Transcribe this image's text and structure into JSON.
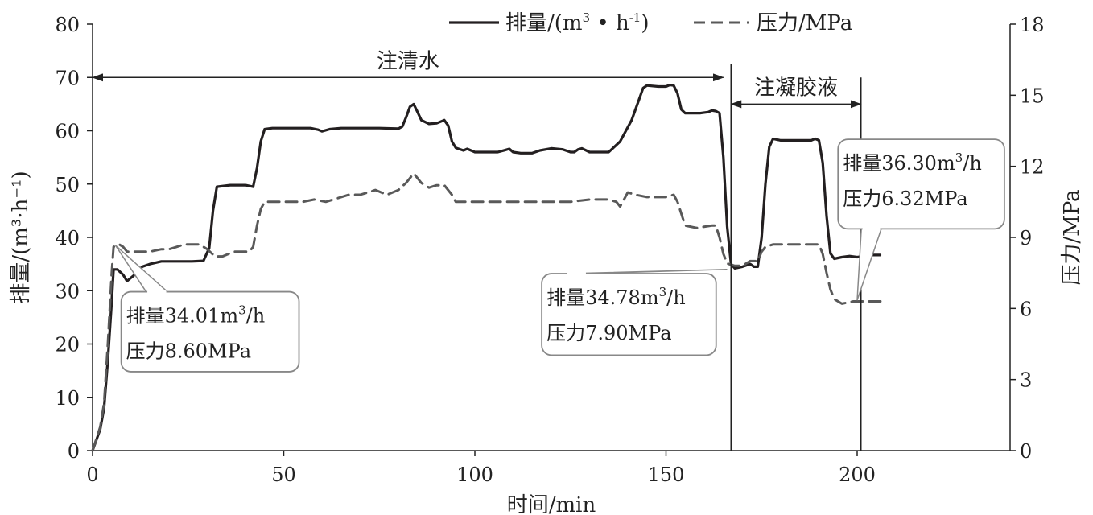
{
  "chart_data": {
    "type": "line",
    "title": "",
    "xlabel": "时间/min",
    "ylabel_left": "排量/(m³·h⁻¹)",
    "ylabel_right": "压力/MPa",
    "xlim": [
      0,
      240
    ],
    "ylim_left": [
      0,
      80
    ],
    "ylim_right": [
      0,
      18
    ],
    "x_ticks": [
      0,
      50,
      100,
      150,
      200
    ],
    "y_left_ticks": [
      0,
      10,
      20,
      30,
      40,
      50,
      60,
      70,
      80
    ],
    "y_right_ticks": [
      0,
      3,
      6,
      9,
      12,
      15,
      18
    ],
    "legend": {
      "position": "top",
      "items": [
        {
          "label_main": "排量/(m",
          "sup1": "3",
          "label_mid": " • h",
          "sup2": "-1",
          "label_end": ")",
          "style": "solid"
        },
        {
          "label": "压力/MPa",
          "style": "dashed"
        }
      ]
    },
    "series": [
      {
        "name": "排量/(m³·h⁻¹)",
        "axis": "left",
        "style": "solid",
        "color": "#231f20",
        "points": [
          [
            0,
            0
          ],
          [
            2,
            4
          ],
          [
            3,
            8
          ],
          [
            4,
            17
          ],
          [
            5,
            28
          ],
          [
            5.5,
            34
          ],
          [
            6.5,
            34
          ],
          [
            8,
            33
          ],
          [
            9,
            31.8
          ],
          [
            11,
            33
          ],
          [
            13,
            34.5
          ],
          [
            15,
            35
          ],
          [
            18,
            35.5
          ],
          [
            22,
            35.5
          ],
          [
            26,
            35.5
          ],
          [
            29,
            35.6
          ],
          [
            30.5,
            38
          ],
          [
            31.5,
            45
          ],
          [
            32.5,
            49.5
          ],
          [
            36,
            49.8
          ],
          [
            40,
            49.8
          ],
          [
            42,
            49.5
          ],
          [
            43,
            53
          ],
          [
            44,
            58
          ],
          [
            45,
            60.3
          ],
          [
            47,
            60.5
          ],
          [
            52,
            60.5
          ],
          [
            57,
            60.5
          ],
          [
            59,
            60.2
          ],
          [
            60,
            59.9
          ],
          [
            62,
            60.3
          ],
          [
            65,
            60.5
          ],
          [
            70,
            60.5
          ],
          [
            75,
            60.5
          ],
          [
            80,
            60.4
          ],
          [
            81,
            60.8
          ],
          [
            82,
            62.5
          ],
          [
            83,
            64.5
          ],
          [
            84,
            65
          ],
          [
            85,
            63.5
          ],
          [
            86,
            62
          ],
          [
            88,
            61.3
          ],
          [
            90,
            61.4
          ],
          [
            92,
            62
          ],
          [
            93,
            61
          ],
          [
            94,
            58
          ],
          [
            95,
            56.8
          ],
          [
            97,
            56.3
          ],
          [
            98,
            56.6
          ],
          [
            100,
            56
          ],
          [
            103,
            56
          ],
          [
            106,
            56
          ],
          [
            108,
            56.4
          ],
          [
            109,
            56.6
          ],
          [
            110,
            56
          ],
          [
            112,
            55.8
          ],
          [
            115,
            55.8
          ],
          [
            117,
            56.3
          ],
          [
            120,
            56.7
          ],
          [
            123,
            56.5
          ],
          [
            125,
            56
          ],
          [
            126,
            56
          ],
          [
            127,
            56.5
          ],
          [
            128,
            56.7
          ],
          [
            130,
            56
          ],
          [
            132,
            56
          ],
          [
            135,
            56
          ],
          [
            138,
            58
          ],
          [
            141,
            62
          ],
          [
            143,
            66
          ],
          [
            144,
            68
          ],
          [
            145,
            68.5
          ],
          [
            148,
            68.3
          ],
          [
            150,
            68.3
          ],
          [
            151,
            68.6
          ],
          [
            152,
            68.5
          ],
          [
            153,
            67
          ],
          [
            154,
            64
          ],
          [
            155,
            63.3
          ],
          [
            157,
            63.3
          ],
          [
            159,
            63.3
          ],
          [
            161,
            63.5
          ],
          [
            162,
            63.8
          ],
          [
            163,
            63.7
          ],
          [
            164,
            63.3
          ],
          [
            165,
            55
          ],
          [
            166,
            42
          ],
          [
            167,
            35
          ],
          [
            168,
            34.2
          ],
          [
            170,
            34.5
          ],
          [
            172,
            35
          ],
          [
            173,
            34.5
          ],
          [
            174,
            34.5
          ],
          [
            175,
            40
          ],
          [
            176,
            50
          ],
          [
            177,
            57
          ],
          [
            178,
            58.5
          ],
          [
            180,
            58.2
          ],
          [
            185,
            58.2
          ],
          [
            188,
            58.2
          ],
          [
            189,
            58.5
          ],
          [
            190,
            58.2
          ],
          [
            191,
            54
          ],
          [
            192,
            44
          ],
          [
            193,
            37
          ],
          [
            194,
            36
          ],
          [
            196,
            36.3
          ],
          [
            198,
            36.5
          ],
          [
            200,
            36.3
          ],
          [
            202,
            36.5
          ],
          [
            204,
            36.7
          ],
          [
            206,
            36.7
          ]
        ]
      },
      {
        "name": "压力/MPa",
        "axis": "right",
        "style": "dashed",
        "color": "#595959",
        "points": [
          [
            0,
            0
          ],
          [
            2,
            1
          ],
          [
            3,
            2
          ],
          [
            4,
            4.5
          ],
          [
            5,
            7.5
          ],
          [
            5.5,
            8.6
          ],
          [
            7,
            8.7
          ],
          [
            8,
            8.6
          ],
          [
            9,
            8.4
          ],
          [
            12,
            8.4
          ],
          [
            15,
            8.4
          ],
          [
            18,
            8.5
          ],
          [
            20,
            8.5
          ],
          [
            22,
            8.6
          ],
          [
            24,
            8.7
          ],
          [
            28,
            8.7
          ],
          [
            30,
            8.5
          ],
          [
            32,
            8.2
          ],
          [
            34,
            8.2
          ],
          [
            37,
            8.4
          ],
          [
            41,
            8.4
          ],
          [
            42,
            8.6
          ],
          [
            43,
            9.5
          ],
          [
            44,
            10.2
          ],
          [
            45,
            10.5
          ],
          [
            50,
            10.5
          ],
          [
            55,
            10.5
          ],
          [
            58,
            10.6
          ],
          [
            61,
            10.5
          ],
          [
            63,
            10.6
          ],
          [
            67,
            10.8
          ],
          [
            70,
            10.8
          ],
          [
            72,
            10.9
          ],
          [
            74,
            11
          ],
          [
            77,
            10.8
          ],
          [
            80,
            11
          ],
          [
            82,
            11.3
          ],
          [
            84,
            11.7
          ],
          [
            85,
            11.5
          ],
          [
            86,
            11.3
          ],
          [
            88,
            11.1
          ],
          [
            90,
            11.2
          ],
          [
            92,
            11.2
          ],
          [
            94,
            10.8
          ],
          [
            95,
            10.5
          ],
          [
            97,
            10.5
          ],
          [
            100,
            10.5
          ],
          [
            105,
            10.5
          ],
          [
            110,
            10.5
          ],
          [
            115,
            10.5
          ],
          [
            120,
            10.5
          ],
          [
            125,
            10.5
          ],
          [
            130,
            10.6
          ],
          [
            135,
            10.6
          ],
          [
            137,
            10.5
          ],
          [
            138,
            10.3
          ],
          [
            139,
            10.6
          ],
          [
            140,
            10.9
          ],
          [
            142,
            10.8
          ],
          [
            145,
            10.7
          ],
          [
            148,
            10.7
          ],
          [
            150,
            10.7
          ],
          [
            152,
            10.8
          ],
          [
            153,
            10.5
          ],
          [
            154,
            10
          ],
          [
            155,
            9.5
          ],
          [
            158,
            9.4
          ],
          [
            162,
            9.5
          ],
          [
            163,
            9.5
          ],
          [
            164,
            9
          ],
          [
            165,
            8.3
          ],
          [
            166,
            7.9
          ],
          [
            168,
            7.8
          ],
          [
            170,
            7.8
          ],
          [
            172,
            8
          ],
          [
            174,
            8
          ],
          [
            175,
            8.4
          ],
          [
            176,
            8.6
          ],
          [
            178,
            8.7
          ],
          [
            182,
            8.7
          ],
          [
            186,
            8.7
          ],
          [
            190,
            8.7
          ],
          [
            191,
            8.3
          ],
          [
            192,
            7.5
          ],
          [
            193,
            6.8
          ],
          [
            194,
            6.4
          ],
          [
            196,
            6.2
          ],
          [
            199,
            6.3
          ],
          [
            202,
            6.3
          ],
          [
            205,
            6.3
          ],
          [
            207,
            6.3
          ]
        ]
      }
    ],
    "stage_annotations": [
      {
        "label": "注清水",
        "x_start": 0,
        "x_end": 165,
        "y_left": 70
      },
      {
        "label": "注凝胶液",
        "x_start": 167,
        "x_end": 201,
        "y_left": 65
      }
    ],
    "vertical_lines": [
      {
        "x": 167,
        "y_top": 72.5
      },
      {
        "x": 201,
        "y_top": 70
      }
    ],
    "callouts": [
      {
        "line1_label": "排量",
        "line1_value": "34.01m",
        "line1_sup": "3",
        "line1_unit": "/h",
        "line2_label": "压力",
        "line2_value": "8.60MPa",
        "point_x": 6,
        "point_y_left": 38.5,
        "box_x": 7.5,
        "box_y_top": 29.8,
        "box_y_bottom": 14.8,
        "box_width": 46.5
      },
      {
        "line1_label": "排量",
        "line1_value": "34.78m",
        "line1_sup": "3",
        "line1_unit": "/h",
        "line2_label": "压力",
        "line2_value": "7.90MPa",
        "point_x": 166,
        "point_y_left": 34,
        "box_x": 117.5,
        "box_y_top": 33.2,
        "box_y_bottom": 17.9,
        "box_width": 45.6
      },
      {
        "line1_label": "排量",
        "line1_value": "36.30m",
        "line1_sup": "3",
        "line1_unit": "/h",
        "line2_label": "压力",
        "line2_value": "6.32MPa",
        "point_x": 200,
        "point_y_left": 28.2,
        "box_x": 195,
        "box_y_top": 58.4,
        "box_y_bottom": 41.6,
        "box_width": 43.5
      }
    ]
  }
}
